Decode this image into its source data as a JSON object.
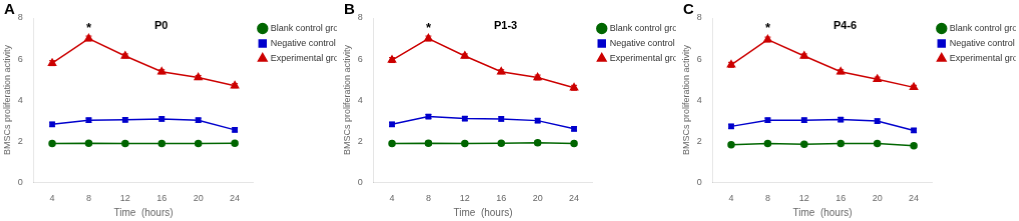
{
  "chart_data": [
    {
      "type": "line",
      "title": "P0",
      "annotations": [
        {
          "text": "A"
        },
        {
          "text": "*",
          "x": 8,
          "y": 7.5
        }
      ],
      "x_label": "Time  (hours)",
      "y_label": "BMSCs proliferation activity",
      "x": [
        4,
        8,
        12,
        16,
        20,
        24
      ],
      "series": [
        {
          "name": "Blank control group",
          "color": "#006600",
          "marker": "circle",
          "values": [
            1.88,
            1.9,
            1.88,
            1.88,
            1.88,
            1.9
          ],
          "errors": [
            0.08,
            0.08,
            0.08,
            0.08,
            0.08,
            0.08
          ]
        },
        {
          "name": "Negative control group",
          "color": "#0000CC",
          "marker": "square",
          "values": [
            2.82,
            3.02,
            3.04,
            3.08,
            3.02,
            2.55
          ],
          "errors": [
            0.1,
            0.1,
            0.1,
            0.1,
            0.1,
            0.1
          ]
        },
        {
          "name": "Experimental group",
          "color": "#CC0000",
          "marker": "triangle",
          "values": [
            5.8,
            7.0,
            6.15,
            5.38,
            5.1,
            4.7
          ],
          "errors": [
            0.12,
            0.12,
            0.1,
            0.1,
            0.1,
            0.1
          ]
        }
      ],
      "xlim": [
        2.0,
        26.0
      ],
      "xticks": [
        4,
        8,
        12,
        16,
        20,
        24
      ],
      "ylim": [
        0,
        8
      ],
      "yticks": [
        0,
        2,
        4,
        6,
        8
      ],
      "grid": false,
      "legend": "right"
    },
    {
      "type": "line",
      "title": "P1-3",
      "annotations": [
        {
          "text": "B"
        },
        {
          "text": "*",
          "x": 8,
          "y": 7.5
        }
      ],
      "x_label": "Time  (hours)",
      "y_label": "BMSCs proliferation activity",
      "x": [
        4,
        8,
        12,
        16,
        20,
        24
      ],
      "series": [
        {
          "name": "Blank control group",
          "color": "#006600",
          "marker": "circle",
          "values": [
            1.88,
            1.9,
            1.88,
            1.9,
            1.92,
            1.88
          ],
          "errors": [
            0.08,
            0.1,
            0.08,
            0.08,
            0.1,
            0.08
          ]
        },
        {
          "name": "Negative control group",
          "color": "#0000CC",
          "marker": "square",
          "values": [
            2.82,
            3.2,
            3.1,
            3.08,
            3.0,
            2.6
          ],
          "errors": [
            0.1,
            0.1,
            0.1,
            0.1,
            0.1,
            0.1
          ]
        },
        {
          "name": "Experimental group",
          "color": "#CC0000",
          "marker": "triangle",
          "values": [
            5.95,
            7.0,
            6.15,
            5.38,
            5.1,
            4.6
          ],
          "errors": [
            0.12,
            0.12,
            0.1,
            0.1,
            0.12,
            0.12
          ]
        }
      ],
      "xlim": [
        2.0,
        26.0
      ],
      "xticks": [
        4,
        8,
        12,
        16,
        20,
        24
      ],
      "ylim": [
        0,
        8
      ],
      "yticks": [
        0,
        2,
        4,
        6,
        8
      ],
      "grid": false,
      "legend": "right"
    },
    {
      "type": "line",
      "title": "P4-6",
      "annotations": [
        {
          "text": "C"
        },
        {
          "text": "*",
          "x": 8,
          "y": 7.5
        }
      ],
      "x_label": "Time  (hours)",
      "y_label": "BMSCs proliferation activity",
      "x": [
        4,
        8,
        12,
        16,
        20,
        24
      ],
      "series": [
        {
          "name": "Blank control group",
          "color": "#006600",
          "marker": "circle",
          "values": [
            1.82,
            1.88,
            1.85,
            1.88,
            1.88,
            1.78
          ],
          "errors": [
            0.08,
            0.08,
            0.08,
            0.08,
            0.08,
            0.08
          ]
        },
        {
          "name": "Negative control group",
          "color": "#0000CC",
          "marker": "square",
          "values": [
            2.72,
            3.02,
            3.02,
            3.05,
            2.98,
            2.52
          ],
          "errors": [
            0.1,
            0.1,
            0.1,
            0.1,
            0.1,
            0.1
          ]
        },
        {
          "name": "Experimental group",
          "color": "#CC0000",
          "marker": "triangle",
          "values": [
            5.72,
            6.95,
            6.15,
            5.38,
            5.02,
            4.62
          ],
          "errors": [
            0.12,
            0.12,
            0.1,
            0.1,
            0.1,
            0.1
          ]
        }
      ],
      "xlim": [
        2.0,
        26.0
      ],
      "xticks": [
        4,
        8,
        12,
        16,
        20,
        24
      ],
      "ylim": [
        0,
        8
      ],
      "yticks": [
        0,
        2,
        4,
        6,
        8
      ],
      "grid": false,
      "legend": "right"
    }
  ]
}
